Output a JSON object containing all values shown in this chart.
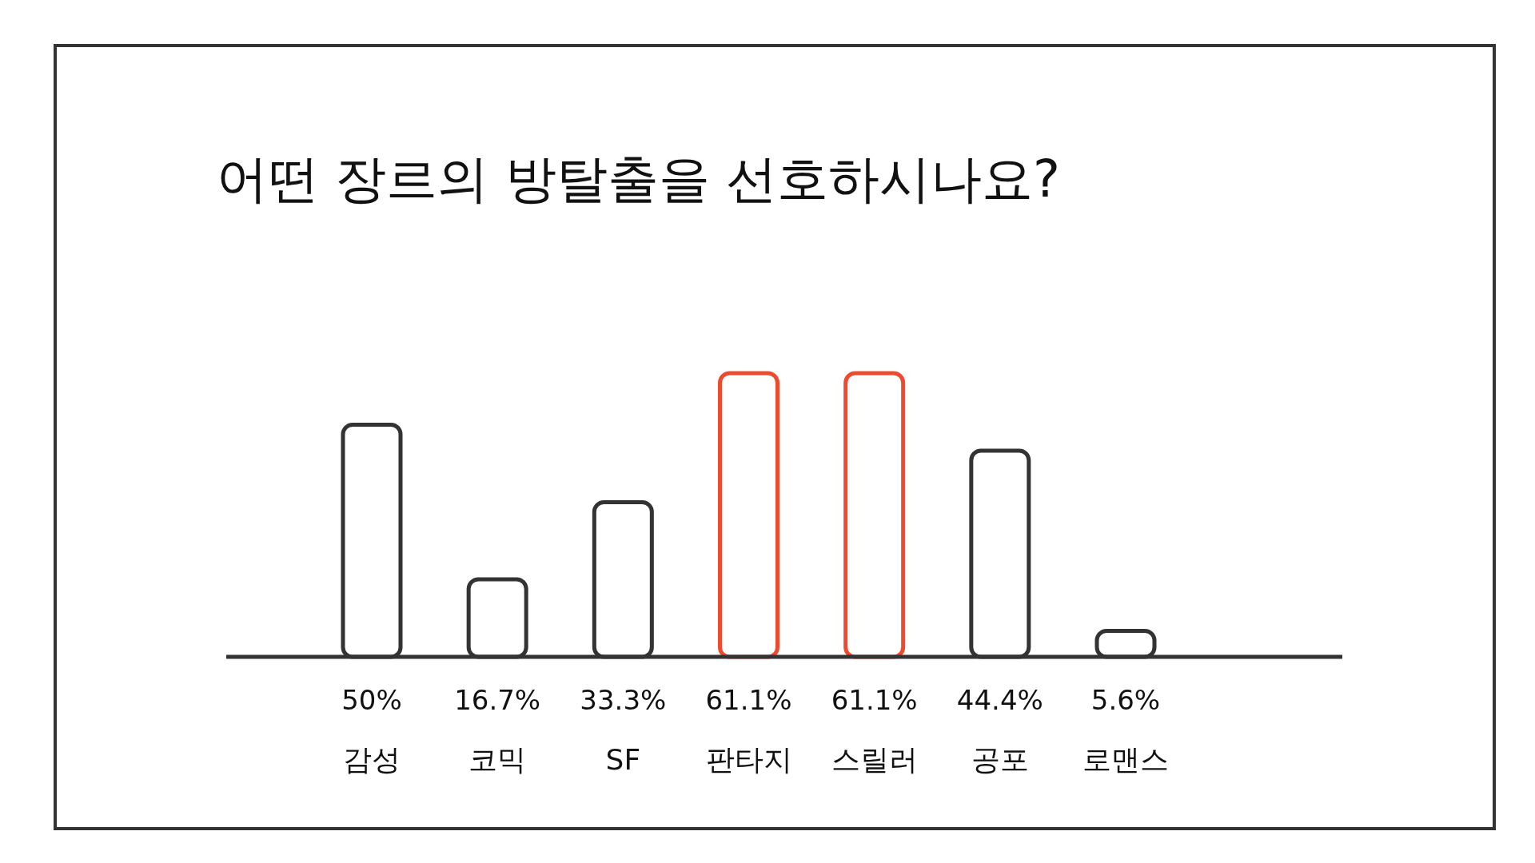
{
  "chart_data": {
    "type": "bar",
    "title": "어떤 장르의 방탈출을 선호하시나요?",
    "categories": [
      "감성",
      "코믹",
      "SF",
      "판타지",
      "스릴러",
      "공포",
      "로맨스"
    ],
    "values": [
      50,
      16.7,
      33.3,
      61.1,
      61.1,
      44.4,
      5.6
    ],
    "value_labels": [
      "50%",
      "16.7%",
      "33.3%",
      "61.1%",
      "61.1%",
      "44.4%",
      "5.6%"
    ],
    "colors": [
      "#333333",
      "#333333",
      "#333333",
      "#f04a2e",
      "#f04a2e",
      "#333333",
      "#333333"
    ]
  }
}
